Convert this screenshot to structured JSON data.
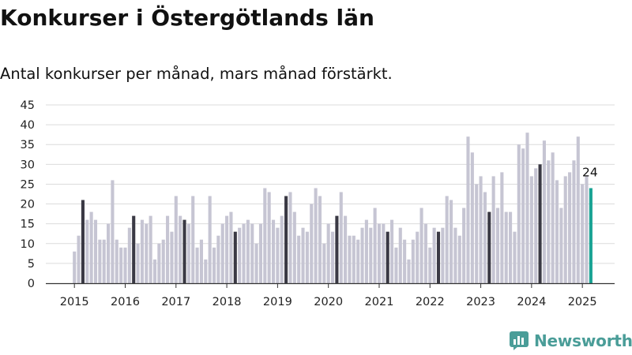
{
  "title": "Konkurser i Östergötlands län",
  "subtitle": "Antal konkurser per månad, mars månad förstärkt.",
  "brand": {
    "name": "Newsworthy",
    "icon": "newsworthy-logo-icon",
    "color": "#4a9d98"
  },
  "chart_data": {
    "type": "bar",
    "start": "2015-01",
    "x_ticks": [
      "2015",
      "2016",
      "2017",
      "2018",
      "2019",
      "2020",
      "2021",
      "2022",
      "2023",
      "2024",
      "2025"
    ],
    "y_ticks": [
      0,
      5,
      10,
      15,
      20,
      25,
      30,
      35,
      40,
      45
    ],
    "ylim": [
      0,
      45
    ],
    "grid": true,
    "values": [
      8,
      12,
      21,
      16,
      18,
      16,
      11,
      11,
      15,
      26,
      11,
      9,
      9,
      14,
      17,
      10,
      16,
      15,
      17,
      6,
      10,
      11,
      17,
      13,
      22,
      17,
      16,
      15,
      22,
      9,
      11,
      6,
      22,
      9,
      12,
      15,
      17,
      18,
      13,
      14,
      15,
      16,
      15,
      10,
      15,
      24,
      23,
      16,
      14,
      17,
      22,
      23,
      18,
      12,
      14,
      13,
      20,
      24,
      22,
      10,
      15,
      13,
      17,
      23,
      17,
      12,
      12,
      11,
      14,
      16,
      14,
      19,
      15,
      15,
      13,
      16,
      9,
      14,
      11,
      6,
      11,
      13,
      19,
      15,
      9,
      14,
      13,
      14,
      22,
      21,
      14,
      12,
      19,
      37,
      33,
      25,
      27,
      23,
      18,
      27,
      19,
      28,
      18,
      18,
      13,
      35,
      34,
      38,
      27,
      29,
      30,
      36,
      31,
      33,
      26,
      19,
      27,
      28,
      31,
      37,
      25,
      27,
      24
    ],
    "highlight": "mars",
    "last_label": "24",
    "colors": {
      "normal": "#c6c5d3",
      "march": "#3a3944",
      "latest": "#19a394",
      "grid": "#dcdcdc",
      "axis": "#333333"
    }
  }
}
